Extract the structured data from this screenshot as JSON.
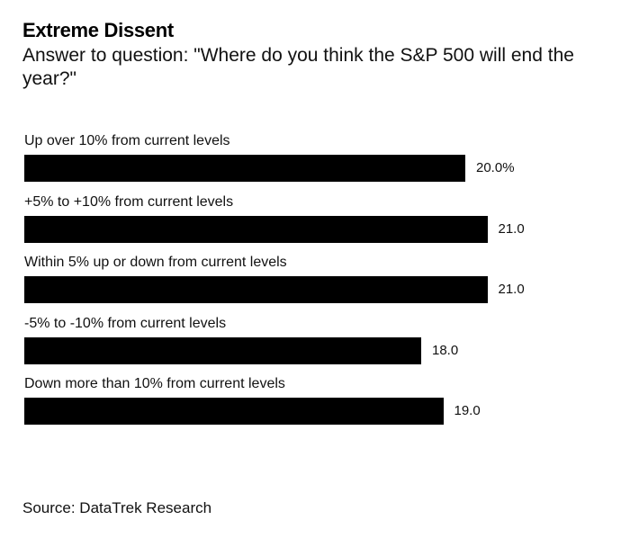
{
  "chart_data": {
    "type": "bar",
    "orientation": "horizontal",
    "title": "Extreme Dissent",
    "subtitle": "Answer to question: \"Where do you think the S&P 500 will end the year?\"",
    "categories": [
      "Up over 10% from current levels",
      "+5% to +10% from current levels",
      "Within 5% up or down from current levels",
      "-5% to -10% from current levels",
      "Down more than 10% from current levels"
    ],
    "values": [
      20.0,
      21.0,
      21.0,
      18.0,
      19.0
    ],
    "value_labels": [
      "20.0%",
      "21.0",
      "21.0",
      "18.0",
      "19.0"
    ],
    "bar_color": "#000000",
    "grid": false,
    "legend": "none"
  },
  "source": "Source: DataTrek Research"
}
